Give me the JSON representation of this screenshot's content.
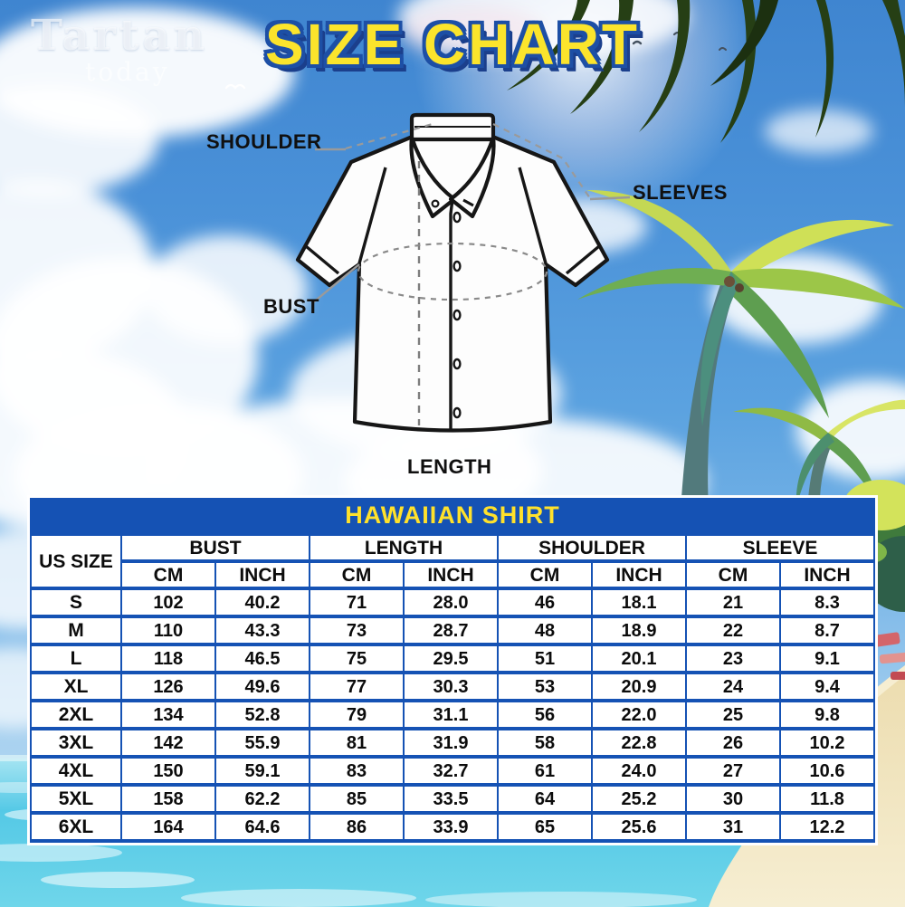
{
  "brand": {
    "name": "Tartan",
    "tagline": "today"
  },
  "title": "SIZE CHART",
  "diagram": {
    "labels": {
      "shoulder": "SHOULDER",
      "sleeves": "SLEEVES",
      "bust": "BUST",
      "length": "LENGTH"
    }
  },
  "table": {
    "title": "HAWAIIAN SHIRT",
    "size_column_header": "US SIZE",
    "groups": [
      "BUST",
      "LENGTH",
      "SHOULDER",
      "SLEEVE"
    ],
    "units": [
      "CM",
      "INCH"
    ],
    "rows": [
      {
        "size": "S",
        "values": [
          "102",
          "40.2",
          "71",
          "28.0",
          "46",
          "18.1",
          "21",
          "8.3"
        ]
      },
      {
        "size": "M",
        "values": [
          "110",
          "43.3",
          "73",
          "28.7",
          "48",
          "18.9",
          "22",
          "8.7"
        ]
      },
      {
        "size": "L",
        "values": [
          "118",
          "46.5",
          "75",
          "29.5",
          "51",
          "20.1",
          "23",
          "9.1"
        ]
      },
      {
        "size": "XL",
        "values": [
          "126",
          "49.6",
          "77",
          "30.3",
          "53",
          "20.9",
          "24",
          "9.4"
        ]
      },
      {
        "size": "2XL",
        "values": [
          "134",
          "52.8",
          "79",
          "31.1",
          "56",
          "22.0",
          "25",
          "9.8"
        ]
      },
      {
        "size": "3XL",
        "values": [
          "142",
          "55.9",
          "81",
          "31.9",
          "58",
          "22.8",
          "26",
          "10.2"
        ]
      },
      {
        "size": "4XL",
        "values": [
          "150",
          "59.1",
          "83",
          "32.7",
          "61",
          "24.0",
          "27",
          "10.6"
        ]
      },
      {
        "size": "5XL",
        "values": [
          "158",
          "62.2",
          "85",
          "33.5",
          "64",
          "25.2",
          "30",
          "11.8"
        ]
      },
      {
        "size": "6XL",
        "values": [
          "164",
          "64.6",
          "86",
          "33.9",
          "65",
          "25.6",
          "31",
          "12.2"
        ]
      }
    ]
  },
  "colors": {
    "table_blue": "#1552b4",
    "header_yellow": "#ffe12b",
    "title_yellow": "#fbe42c",
    "title_outline_blue": "#1d4fa5"
  }
}
